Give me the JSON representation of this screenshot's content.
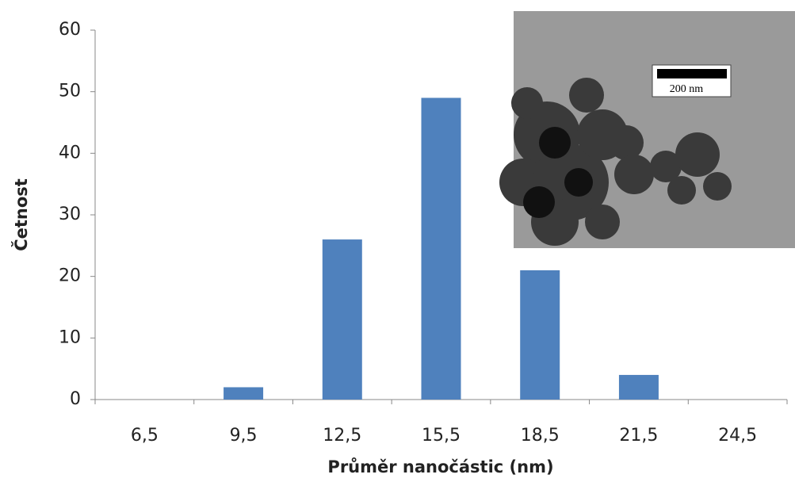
{
  "chart_data": {
    "type": "bar",
    "x_label": "Průměr nanočástic (nm)",
    "y_label": "Četnost",
    "categories": [
      "6,5",
      "9,5",
      "12,5",
      "15,5",
      "18,5",
      "21,5",
      "24,5"
    ],
    "values": [
      0,
      2,
      26,
      49,
      21,
      4,
      0
    ],
    "color": "#4f81bd",
    "ylim": [
      0,
      60
    ],
    "yticks": [
      0,
      10,
      20,
      30,
      40,
      50,
      60
    ],
    "grid": false,
    "inset_scale_bar_label": "200 nm"
  }
}
